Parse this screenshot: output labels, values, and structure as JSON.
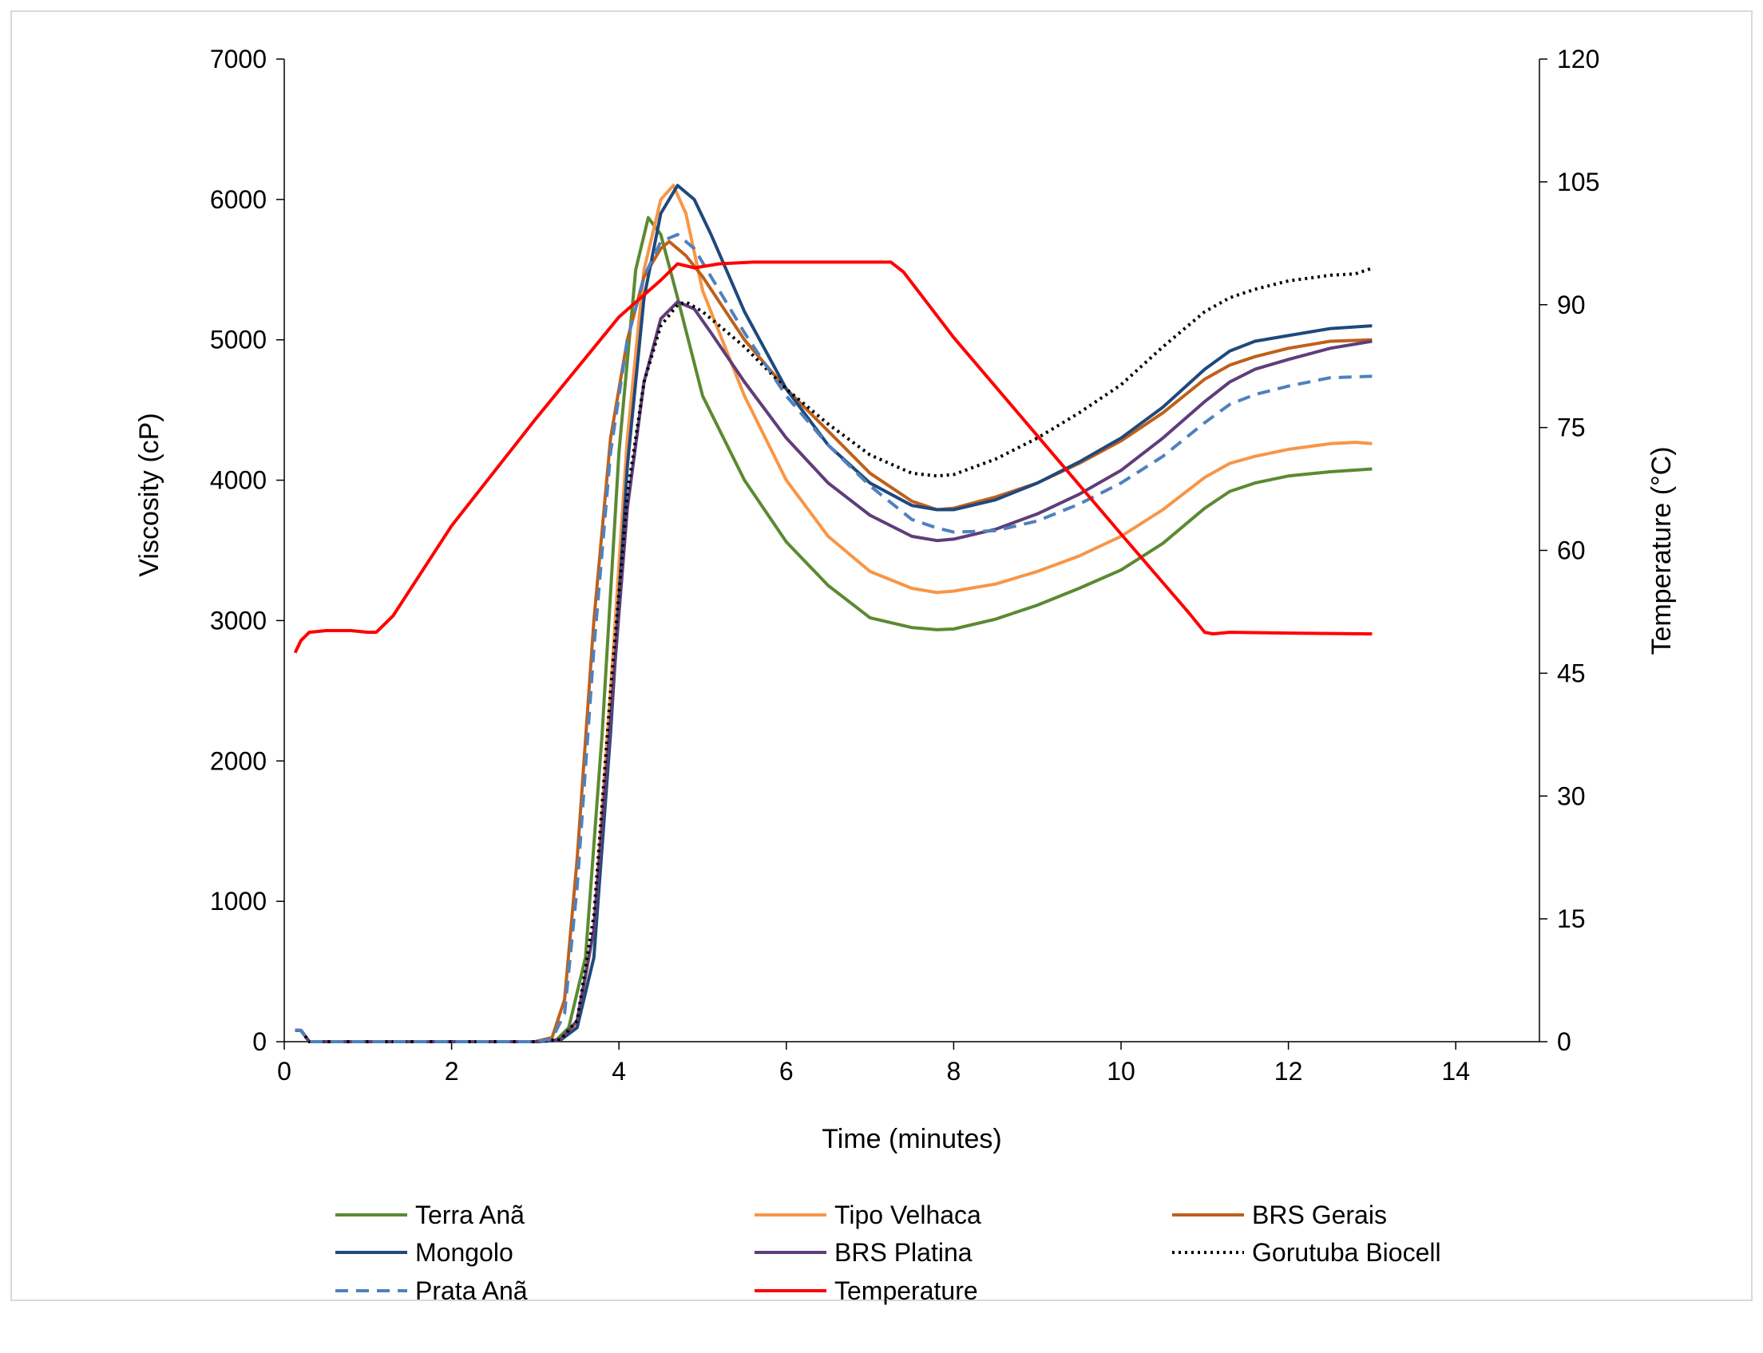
{
  "chart_data": {
    "type": "line",
    "xlabel": "Time (minutes)",
    "ylabel": "Viscosity (cP)",
    "y2label": "Temperature (°C)",
    "xlim": [
      0,
      15
    ],
    "ylim": [
      0,
      7000
    ],
    "y2lim": [
      0,
      120
    ],
    "xticks": [
      0,
      2,
      4,
      6,
      8,
      10,
      12,
      14
    ],
    "yticks": [
      0,
      1000,
      2000,
      3000,
      4000,
      5000,
      6000,
      7000
    ],
    "y2ticks": [
      0,
      15,
      30,
      45,
      60,
      75,
      90,
      105,
      120
    ],
    "grid": false,
    "legend_position": "bottom",
    "series": [
      {
        "name": "Terra Anã",
        "axis": "left",
        "color": "#5B8A31",
        "style": "solid",
        "x": [
          0.13,
          0.2,
          0.3,
          3.0,
          3.25,
          3.4,
          3.6,
          3.8,
          4.0,
          4.2,
          4.35,
          4.5,
          4.7,
          5.0,
          5.5,
          6.0,
          6.5,
          7.0,
          7.5,
          7.8,
          8.0,
          8.5,
          9.0,
          9.5,
          10.0,
          10.5,
          11.0,
          11.3,
          11.6,
          12.0,
          12.5,
          13.0
        ],
        "values": [
          80,
          80,
          0,
          0,
          10,
          100,
          600,
          2200,
          4200,
          5500,
          5870,
          5750,
          5300,
          4600,
          4000,
          3560,
          3250,
          3020,
          2950,
          2935,
          2940,
          3010,
          3110,
          3230,
          3360,
          3550,
          3800,
          3920,
          3980,
          4030,
          4060,
          4080
        ]
      },
      {
        "name": "Tipo Velhaca",
        "axis": "left",
        "color": "#F79646",
        "style": "solid",
        "x": [
          0.13,
          0.2,
          0.3,
          3.0,
          3.3,
          3.5,
          3.7,
          3.9,
          4.1,
          4.3,
          4.5,
          4.65,
          4.8,
          5.0,
          5.5,
          6.0,
          6.5,
          7.0,
          7.5,
          7.8,
          8.0,
          8.5,
          9.0,
          9.5,
          10.0,
          10.5,
          11.0,
          11.3,
          11.6,
          12.0,
          12.5,
          12.8,
          13.0
        ],
        "values": [
          80,
          80,
          0,
          0,
          10,
          120,
          800,
          2500,
          4300,
          5500,
          6000,
          6100,
          5900,
          5350,
          4600,
          4000,
          3600,
          3350,
          3230,
          3200,
          3210,
          3260,
          3350,
          3460,
          3600,
          3790,
          4020,
          4120,
          4170,
          4220,
          4260,
          4270,
          4260
        ]
      },
      {
        "name": "BRS Gerais",
        "axis": "left",
        "color": "#C0601A",
        "style": "solid",
        "x": [
          0.13,
          0.2,
          0.3,
          3.0,
          3.2,
          3.35,
          3.5,
          3.7,
          3.9,
          4.1,
          4.3,
          4.5,
          4.6,
          4.8,
          5.0,
          5.5,
          6.0,
          6.5,
          7.0,
          7.5,
          7.8,
          8.0,
          8.5,
          9.0,
          9.5,
          10.0,
          10.5,
          11.0,
          11.3,
          11.6,
          12.0,
          12.5,
          13.0
        ],
        "values": [
          80,
          80,
          0,
          0,
          30,
          300,
          1300,
          3000,
          4300,
          5000,
          5450,
          5650,
          5700,
          5600,
          5450,
          5000,
          4650,
          4350,
          4050,
          3850,
          3790,
          3800,
          3880,
          3980,
          4120,
          4280,
          4480,
          4720,
          4820,
          4880,
          4940,
          4990,
          5000
        ]
      },
      {
        "name": "Mongolo",
        "axis": "left",
        "color": "#1F497D",
        "style": "solid",
        "x": [
          0.13,
          0.2,
          0.3,
          3.0,
          3.3,
          3.5,
          3.7,
          3.9,
          4.1,
          4.3,
          4.5,
          4.7,
          4.9,
          5.1,
          5.5,
          6.0,
          6.5,
          7.0,
          7.5,
          7.8,
          8.0,
          8.5,
          9.0,
          9.5,
          10.0,
          10.5,
          11.0,
          11.3,
          11.6,
          12.0,
          12.5,
          13.0
        ],
        "values": [
          80,
          80,
          0,
          0,
          10,
          100,
          600,
          2200,
          4100,
          5300,
          5900,
          6100,
          6000,
          5750,
          5200,
          4650,
          4250,
          3980,
          3820,
          3790,
          3790,
          3860,
          3980,
          4130,
          4300,
          4520,
          4790,
          4920,
          4990,
          5030,
          5080,
          5100
        ]
      },
      {
        "name": "BRS Platina",
        "axis": "left",
        "color": "#5F3D7A",
        "style": "solid",
        "x": [
          0.13,
          0.2,
          0.3,
          3.0,
          3.3,
          3.5,
          3.7,
          3.9,
          4.1,
          4.3,
          4.5,
          4.7,
          4.9,
          5.1,
          5.5,
          6.0,
          6.5,
          7.0,
          7.5,
          7.8,
          8.0,
          8.5,
          9.0,
          9.5,
          10.0,
          10.5,
          11.0,
          11.3,
          11.6,
          12.0,
          12.5,
          13.0
        ],
        "values": [
          80,
          80,
          0,
          0,
          15,
          150,
          800,
          2300,
          3800,
          4700,
          5150,
          5270,
          5220,
          5050,
          4700,
          4300,
          3980,
          3750,
          3600,
          3570,
          3580,
          3650,
          3760,
          3900,
          4070,
          4300,
          4560,
          4700,
          4790,
          4860,
          4940,
          4990
        ]
      },
      {
        "name": "Gorutuba Biocell",
        "axis": "left",
        "color": "#000000",
        "style": "dotted",
        "x": [
          0.13,
          0.2,
          0.3,
          3.0,
          3.3,
          3.5,
          3.7,
          3.9,
          4.1,
          4.3,
          4.5,
          4.7,
          4.8,
          5.0,
          5.5,
          6.0,
          6.5,
          7.0,
          7.5,
          7.8,
          8.0,
          8.5,
          9.0,
          9.5,
          10.0,
          10.5,
          11.0,
          11.3,
          11.6,
          12.0,
          12.5,
          12.8,
          13.0
        ],
        "values": [
          80,
          80,
          0,
          0,
          15,
          150,
          900,
          2500,
          3900,
          4700,
          5100,
          5250,
          5270,
          5200,
          4950,
          4650,
          4400,
          4180,
          4050,
          4030,
          4040,
          4150,
          4300,
          4480,
          4680,
          4950,
          5200,
          5300,
          5360,
          5420,
          5460,
          5470,
          5510
        ]
      },
      {
        "name": "Prata Anã",
        "axis": "left",
        "color": "#4F81BD",
        "style": "dashed",
        "x": [
          0.13,
          0.2,
          0.3,
          3.0,
          3.2,
          3.35,
          3.5,
          3.7,
          3.9,
          4.1,
          4.3,
          4.5,
          4.7,
          4.9,
          5.1,
          5.5,
          6.0,
          6.5,
          7.0,
          7.5,
          7.8,
          8.0,
          8.5,
          9.0,
          9.5,
          10.0,
          10.5,
          11.0,
          11.3,
          11.6,
          12.0,
          12.5,
          13.0
        ],
        "values": [
          80,
          80,
          0,
          0,
          20,
          200,
          1100,
          2800,
          4200,
          5000,
          5450,
          5700,
          5750,
          5650,
          5450,
          5050,
          4600,
          4250,
          3960,
          3720,
          3660,
          3630,
          3640,
          3710,
          3830,
          3980,
          4170,
          4410,
          4540,
          4610,
          4670,
          4730,
          4740
        ]
      },
      {
        "name": "Temperature",
        "axis": "right",
        "color": "#FF0000",
        "style": "solid",
        "x": [
          0.13,
          0.2,
          0.3,
          0.5,
          0.8,
          1.0,
          1.1,
          1.3,
          2.0,
          3.0,
          4.0,
          4.5,
          4.7,
          4.9,
          5.2,
          5.6,
          6.0,
          7.0,
          7.25,
          7.4,
          8.0,
          9.0,
          10.0,
          10.8,
          11.0,
          11.1,
          11.3,
          12.0,
          13.0
        ],
        "values": [
          47.5,
          49,
          50,
          50.2,
          50.2,
          50,
          50,
          52,
          63,
          76,
          88.5,
          93,
          95,
          94.5,
          95,
          95.2,
          95.2,
          95.2,
          95.2,
          94,
          86,
          74,
          62,
          52.5,
          50,
          49.8,
          50,
          49.9,
          49.8
        ]
      }
    ]
  }
}
